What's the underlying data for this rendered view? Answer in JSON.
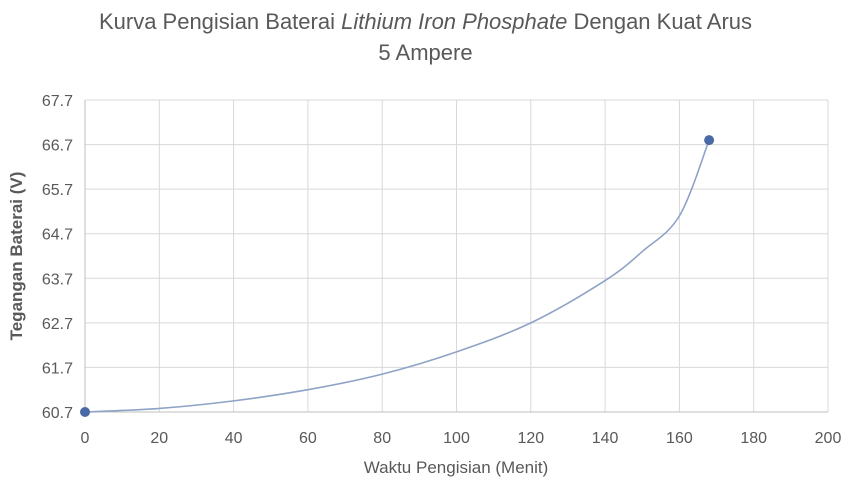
{
  "chart_data": {
    "type": "scatter",
    "title_parts": {
      "before": "Kurva Pengisian Baterai ",
      "italic": "Lithium Iron Phosphate",
      "after": " Dengan Kuat Arus",
      "line2": "5 Ampere"
    },
    "xlabel": "Waktu Pengisian (Menit)",
    "ylabel": "Tegangan Baterai (V)",
    "xlim": [
      0,
      200
    ],
    "ylim": [
      60.7,
      67.7
    ],
    "x_ticks": [
      "0",
      "20",
      "40",
      "60",
      "80",
      "100",
      "120",
      "140",
      "160",
      "180",
      "200"
    ],
    "y_ticks": [
      "60.7",
      "61.7",
      "62.7",
      "63.7",
      "64.7",
      "65.7",
      "66.7",
      "67.7"
    ],
    "grid": true,
    "series": [
      {
        "points": [
          [
            0,
            60.7
          ],
          [
            168,
            66.8
          ]
        ],
        "smoothed_line": [
          [
            0,
            60.7
          ],
          [
            20,
            60.78
          ],
          [
            40,
            60.95
          ],
          [
            60,
            61.2
          ],
          [
            80,
            61.55
          ],
          [
            100,
            62.05
          ],
          [
            120,
            62.7
          ],
          [
            140,
            63.65
          ],
          [
            150,
            64.3
          ],
          [
            160,
            65.1
          ],
          [
            168,
            66.8
          ]
        ],
        "color": "#4a6aa5",
        "line_color": "#8ea3c6"
      }
    ]
  }
}
